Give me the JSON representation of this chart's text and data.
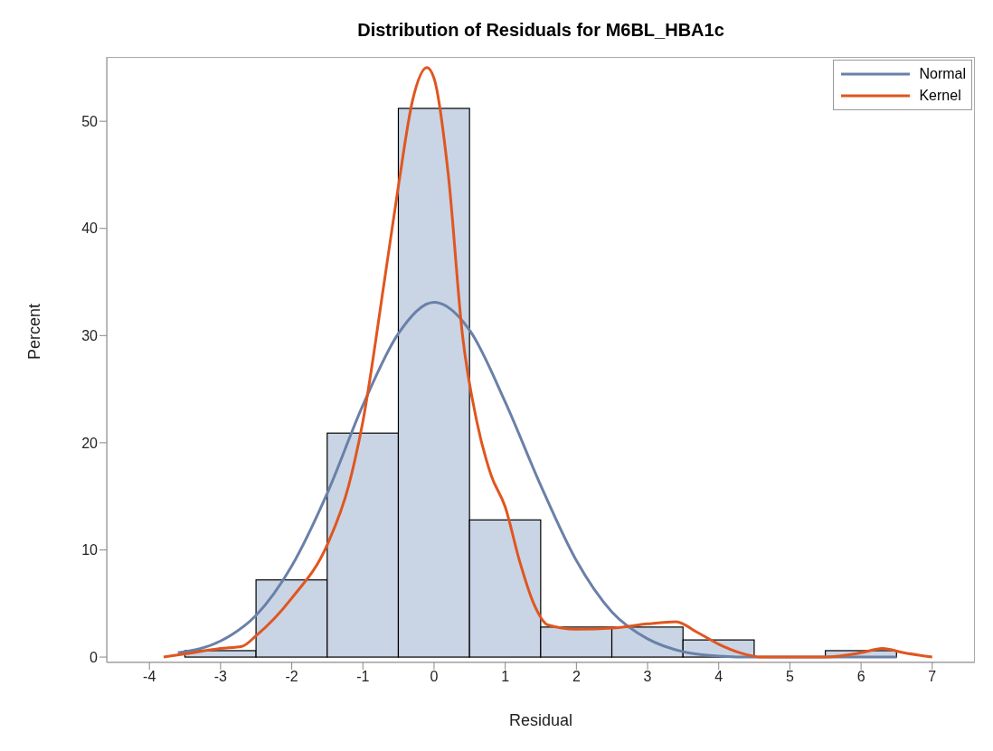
{
  "chart_data": {
    "type": "histogram",
    "title": "Distribution of Residuals for M6BL_HBA1c",
    "xlabel": "Residual",
    "ylabel": "Percent",
    "bins": [
      -3.5,
      -2.5,
      -1.5,
      -0.5,
      0.5,
      1.5,
      2.5,
      3.5,
      4.5,
      5.5,
      6.5
    ],
    "values": [
      0.6,
      7.2,
      20.9,
      51.2,
      12.8,
      2.8,
      2.8,
      1.6,
      0,
      0.6
    ],
    "color": "#c9d4e5",
    "series": [
      {
        "name": "Normal",
        "type": "line",
        "color": "#6a80a8",
        "x": [
          -3.6,
          -3,
          -2.5,
          -2,
          -1.5,
          -1,
          -0.5,
          0,
          0.5,
          1,
          1.5,
          2,
          2.5,
          3,
          3.5,
          4,
          4.5,
          5,
          5.5,
          6,
          6.5
        ],
        "values": [
          0.4,
          1.5,
          3.9,
          8.5,
          15.3,
          23.5,
          30.2,
          33.1,
          30.5,
          23.8,
          16,
          9,
          4.2,
          1.7,
          0.5,
          0.1,
          0,
          0,
          0,
          0,
          0
        ]
      },
      {
        "name": "Kernel",
        "type": "line",
        "color": "#e0561f",
        "x": [
          -3.8,
          -3.5,
          -3,
          -2.7,
          -2.5,
          -2,
          -1.5,
          -1.2,
          -1,
          -0.7,
          -0.5,
          -0.3,
          -0.1,
          0,
          0.2,
          0.4,
          0.6,
          0.8,
          1,
          1.2,
          1.4,
          1.6,
          2,
          2.5,
          3,
          3.4,
          3.7,
          4,
          4.3,
          4.6,
          5.5,
          6,
          6.3,
          6.6,
          7
        ],
        "values": [
          0,
          0.3,
          0.8,
          1,
          2,
          5.5,
          10.5,
          16,
          22,
          35,
          44,
          52,
          55,
          54,
          45,
          30,
          22,
          17,
          14,
          9,
          5,
          3,
          2.6,
          2.7,
          3.1,
          3.3,
          2.3,
          1.2,
          0.4,
          0,
          0,
          0.4,
          0.8,
          0.4,
          0
        ]
      }
    ],
    "xlim": [
      -4.6,
      7.6
    ],
    "xticks": [
      -4,
      -3,
      -2,
      -1,
      0,
      1,
      2,
      3,
      4,
      5,
      6,
      7
    ],
    "ylim": [
      -0.5,
      56
    ],
    "yticks": [
      0,
      10,
      20,
      30,
      40,
      50
    ],
    "grid": false,
    "legend": "top right",
    "marker": "none",
    "line_style": "solid"
  }
}
